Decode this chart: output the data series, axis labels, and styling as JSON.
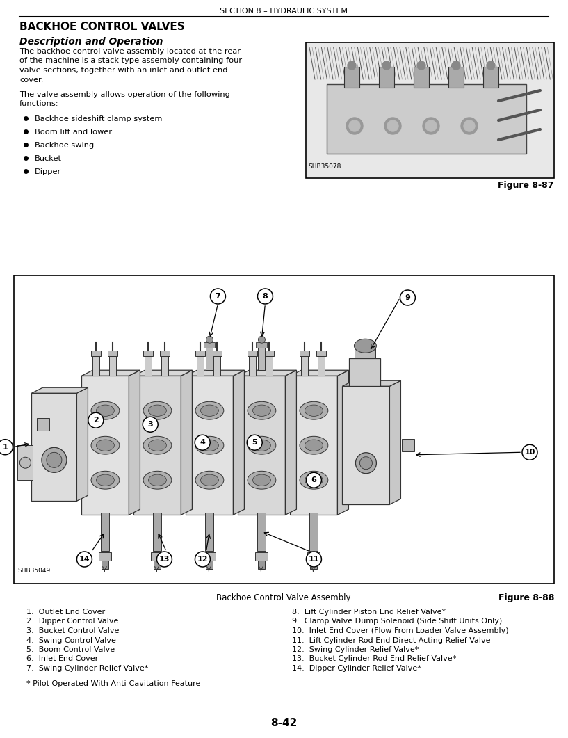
{
  "page_header": "SECTION 8 – HYDRAULIC SYSTEM",
  "section_title": "BACKHOE CONTROL VALVES",
  "subsection_title": "Description and Operation",
  "body_text_1": "The backhoe control valve assembly located at the rear of the machine is a stack type assembly containing four valve sections, together with an inlet and outlet end cover.",
  "body_text_2": "The valve assembly allows operation of the following functions:",
  "bullets": [
    "Backhoe sideshift clamp system",
    "Boom lift and lower",
    "Backhoe swing",
    "Bucket",
    "Dipper"
  ],
  "figure87_caption": "Figure 8-87",
  "figure87_code": "SHB35078",
  "figure88_caption": "Figure 8-88",
  "figure88_code": "SHB35049",
  "diagram_title": "Backhoe Control Valve Assembly",
  "parts_left": [
    "1.  Outlet End Cover",
    "2.  Dipper Control Valve",
    "3.  Bucket Control Valve",
    "4.  Swing Control Valve",
    "5.  Boom Control Valve",
    "6.  Inlet End Cover",
    "7.  Swing Cylinder Relief Valve*"
  ],
  "parts_right": [
    "8.  Lift Cylinder Piston End Relief Valve*",
    "9.  Clamp Valve Dump Solenoid (Side Shift Units Only)",
    "10.  Inlet End Cover (Flow From Loader Valve Assembly)",
    "11.  Lift Cylinder Rod End Direct Acting Relief Valve",
    "12.  Swing Cylinder Relief Valve*",
    "13.  Bucket Cylinder Rod End Relief Valve*",
    "14.  Dipper Cylinder Relief Valve*"
  ],
  "footnote": "* Pilot Operated With Anti-Cavitation Feature",
  "page_number": "8-42",
  "bg_color": "#ffffff",
  "text_color": "#000000"
}
